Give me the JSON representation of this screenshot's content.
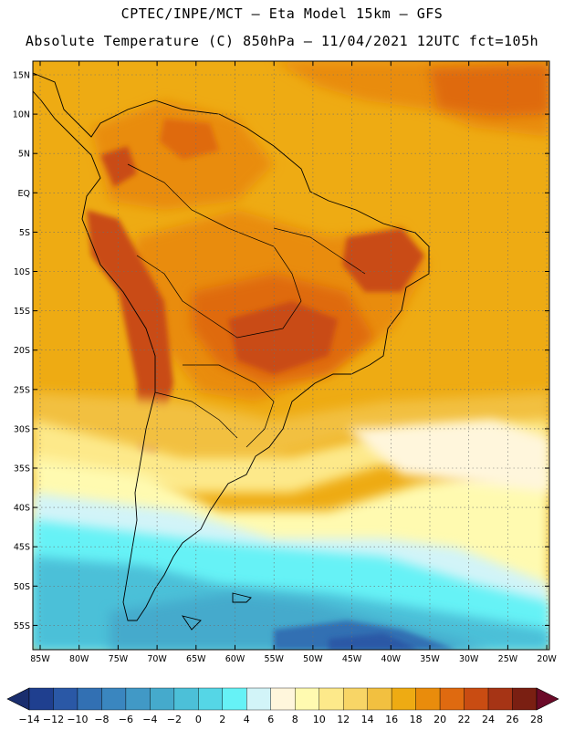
{
  "header": {
    "line1": "CPTEC/INPE/MCT —  Eta Model 15km — GFS",
    "line2": "Absolute Temperature (C) 850hPa — 11/04/2021 12UTC fct=105h"
  },
  "axes": {
    "lat_labels": [
      "15N",
      "10N",
      "5N",
      "EQ",
      "5S",
      "10S",
      "15S",
      "20S",
      "25S",
      "30S",
      "35S",
      "40S",
      "45S",
      "50S",
      "55S"
    ],
    "lon_labels": [
      "85W",
      "80W",
      "75W",
      "70W",
      "65W",
      "60W",
      "55W",
      "50W",
      "45W",
      "40W",
      "35W",
      "30W",
      "25W",
      "20W"
    ]
  },
  "colorbar": {
    "labels": [
      "-14",
      "-12",
      "-10",
      "-8",
      "-6",
      "-4",
      "-2",
      "0",
      "2",
      "4",
      "6",
      "8",
      "10",
      "12",
      "14",
      "16",
      "18",
      "20",
      "22",
      "24",
      "26",
      "28"
    ],
    "colors": [
      "#1f3f8f",
      "#2a58a6",
      "#3270b3",
      "#3a86bf",
      "#4199c6",
      "#45aacc",
      "#4cc0d8",
      "#55d6e6",
      "#66f2f6",
      "#d2f4f8",
      "#fff6dc",
      "#fffab0",
      "#fde98a",
      "#f8d566",
      "#f2c040",
      "#eeab13",
      "#e98c0c",
      "#df6a10",
      "#c94c12",
      "#a63415",
      "#7a1f12"
    ],
    "left_tip": "#1a2e6e",
    "right_tip": "#6b0a28"
  }
}
